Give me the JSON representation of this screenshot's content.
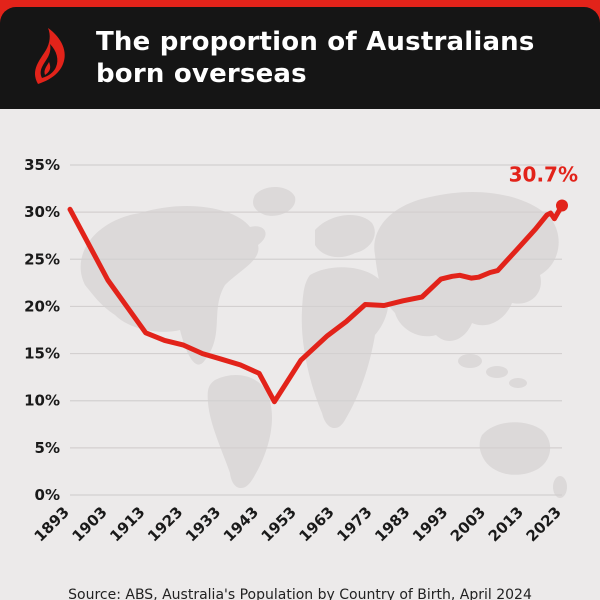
{
  "header": {
    "title": "The proportion of Australians born overseas",
    "logo": "sbs-logo-icon"
  },
  "footer": {
    "source": "Source: ABS, Australia's Population by Country of Birth, April 2024"
  },
  "colors": {
    "accent_red": "#e2231a",
    "header_bg": "#151515",
    "body_bg": "#eceaea",
    "grid": "#d3d0d0",
    "map_watermark": "#dcd9d9",
    "axis_text": "#1a1a1a"
  },
  "chart_data": {
    "type": "line",
    "title": "The proportion of Australians born overseas",
    "xlabel": "",
    "ylabel": "",
    "ylim": [
      0,
      35
    ],
    "yticks": [
      0,
      5,
      10,
      15,
      20,
      25,
      30,
      35
    ],
    "ytick_suffix": "%",
    "xticks": [
      1893,
      1903,
      1913,
      1923,
      1933,
      1943,
      1953,
      1963,
      1973,
      1983,
      1993,
      2003,
      2013,
      2023
    ],
    "grid": true,
    "legend": "none",
    "series_name": "Proportion of Australians born overseas (%)",
    "series_color": "#e2231a",
    "end_label": "30.7%",
    "end_point": [
      2023,
      30.7
    ],
    "points": [
      [
        1893,
        30.3
      ],
      [
        1903,
        22.8
      ],
      [
        1913,
        17.2
      ],
      [
        1918,
        16.4
      ],
      [
        1923,
        15.9
      ],
      [
        1928,
        15.0
      ],
      [
        1933,
        14.4
      ],
      [
        1938,
        13.8
      ],
      [
        1943,
        12.9
      ],
      [
        1947,
        9.9
      ],
      [
        1954,
        14.3
      ],
      [
        1961,
        16.9
      ],
      [
        1966,
        18.4
      ],
      [
        1971,
        20.2
      ],
      [
        1976,
        20.1
      ],
      [
        1981,
        20.6
      ],
      [
        1986,
        21.0
      ],
      [
        1991,
        22.9
      ],
      [
        1994,
        23.2
      ],
      [
        1996,
        23.3
      ],
      [
        1999,
        23.0
      ],
      [
        2001,
        23.1
      ],
      [
        2004,
        23.6
      ],
      [
        2006,
        23.8
      ],
      [
        2011,
        26.0
      ],
      [
        2016,
        28.2
      ],
      [
        2019,
        29.7
      ],
      [
        2020,
        29.9
      ],
      [
        2021,
        29.3
      ],
      [
        2023,
        30.7
      ]
    ]
  }
}
